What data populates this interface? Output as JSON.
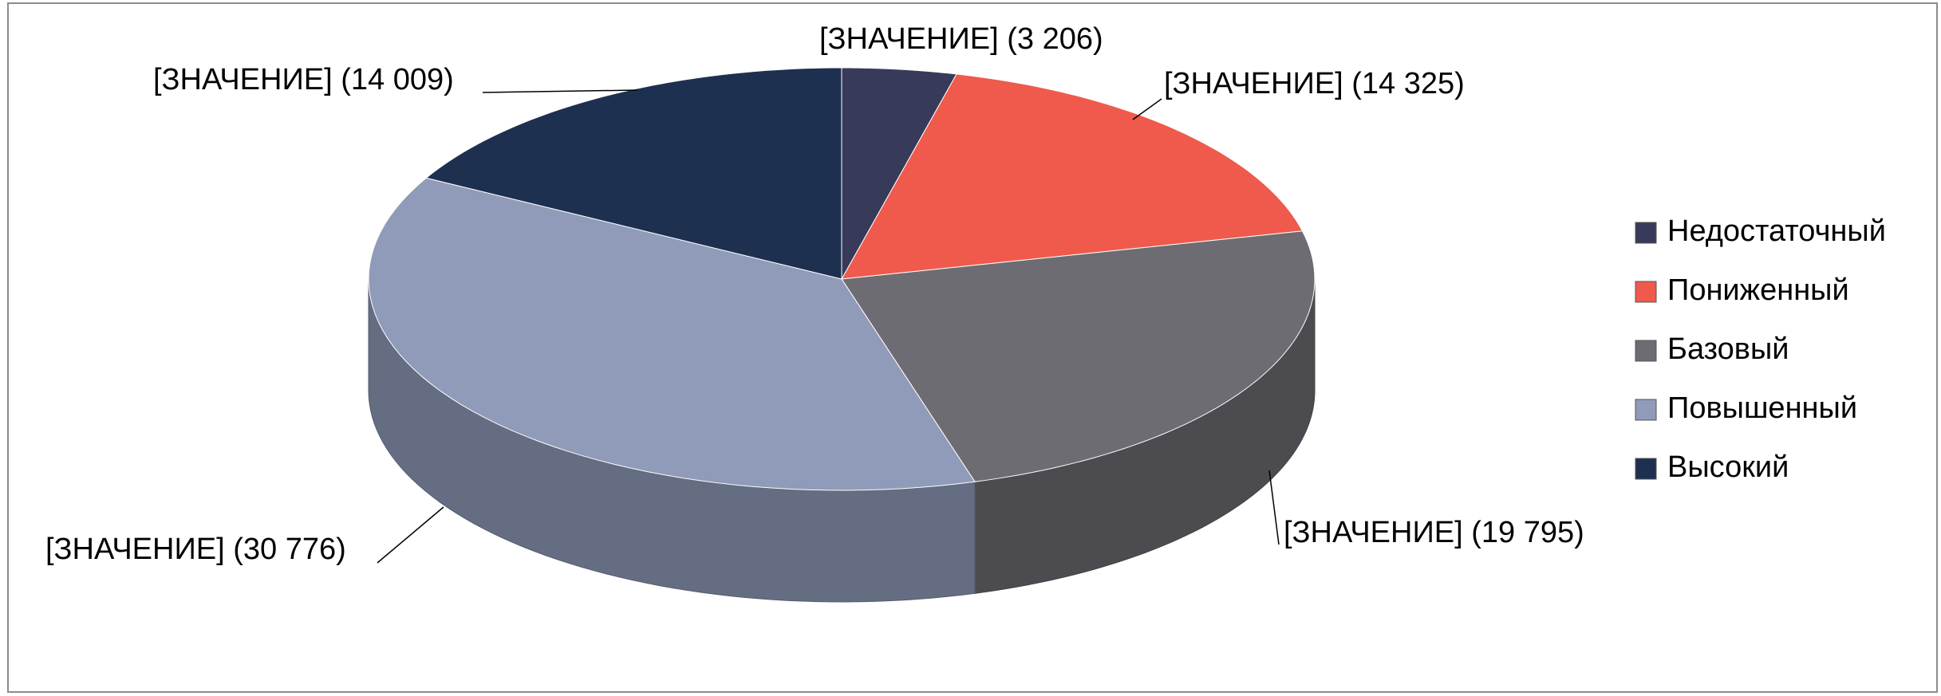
{
  "chart_data": {
    "type": "pie3d",
    "categories": [
      "Недостаточный",
      "Пониженный",
      "Базовый",
      "Повышенный",
      "Высокий"
    ],
    "values": [
      3206,
      14325,
      19795,
      30776,
      14009
    ],
    "value_labels": [
      "[ЗНАЧЕНИЕ] (3 206)",
      "[ЗНАЧЕНИЕ] (14 325)",
      "[ЗНАЧЕНИЕ] (19 795)",
      "[ЗНАЧЕНИЕ] (30 776)",
      "[ЗНАЧЕНИЕ] (14 009)"
    ],
    "colors": [
      "#383a5a",
      "#ef5a4c",
      "#6d6c72",
      "#8f9bb8",
      "#1e3050"
    ],
    "legend": "right"
  }
}
